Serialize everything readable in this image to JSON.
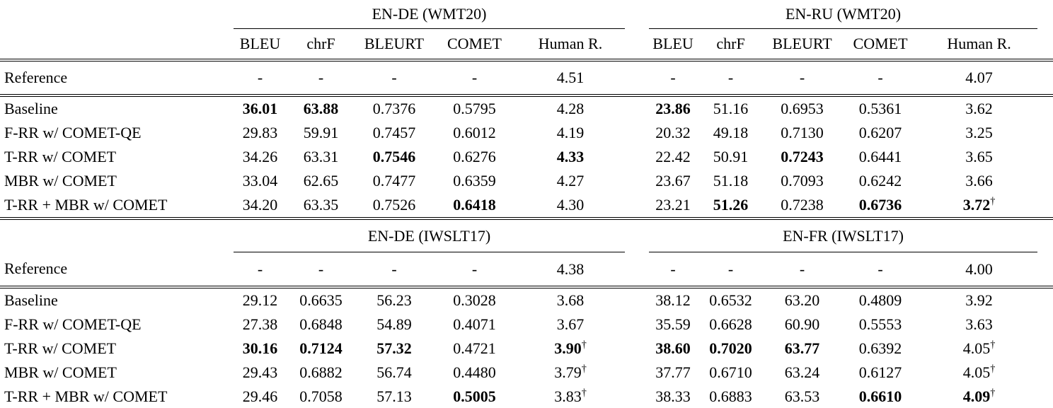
{
  "page": {
    "background": "#ffffff",
    "text_color": "#000000"
  },
  "table": {
    "metric_headers": [
      "BLEU",
      "chrF",
      "BLEURT",
      "COMET",
      "Human R."
    ],
    "sections": [
      {
        "groups": [
          {
            "label": "EN-DE (WMT20)"
          },
          {
            "label": "EN-RU (WMT20)"
          }
        ],
        "show_metric_headers": true,
        "reference": {
          "label": "Reference",
          "cells": [
            "-",
            "-",
            "-",
            "-",
            "4.51",
            "-",
            "-",
            "-",
            "-",
            "4.07"
          ]
        },
        "rows": [
          {
            "label": "Baseline",
            "cells": [
              {
                "t": "36.01",
                "b": true
              },
              {
                "t": "63.88",
                "b": true
              },
              "0.7376",
              "0.5795",
              "4.28",
              {
                "t": "23.86",
                "b": true
              },
              "51.16",
              "0.6953",
              "0.5361",
              "3.62"
            ]
          },
          {
            "label": "F-RR w/ COMET-QE",
            "cells": [
              "29.83",
              "59.91",
              "0.7457",
              "0.6012",
              "4.19",
              "20.32",
              "49.18",
              "0.7130",
              "0.6207",
              "3.25"
            ]
          },
          {
            "label": "T-RR w/ COMET",
            "cells": [
              "34.26",
              "63.31",
              {
                "t": "0.7546",
                "b": true
              },
              "0.6276",
              {
                "t": "4.33",
                "b": true
              },
              "22.42",
              "50.91",
              {
                "t": "0.7243",
                "b": true
              },
              "0.6441",
              "3.65"
            ]
          },
          {
            "label": "MBR w/ COMET",
            "cells": [
              "33.04",
              "62.65",
              "0.7477",
              "0.6359",
              "4.27",
              "23.67",
              "51.18",
              "0.7093",
              "0.6242",
              "3.66"
            ]
          },
          {
            "label": "T-RR + MBR w/ COMET",
            "cells": [
              "34.20",
              "63.35",
              "0.7526",
              {
                "t": "0.6418",
                "b": true
              },
              "4.30",
              "23.21",
              {
                "t": "51.26",
                "b": true
              },
              "0.7238",
              {
                "t": "0.6736",
                "b": true
              },
              {
                "t": "3.72",
                "b": true,
                "sup": "†"
              }
            ]
          }
        ]
      },
      {
        "groups": [
          {
            "label": "EN-DE (IWSLT17)"
          },
          {
            "label": "EN-FR (IWSLT17)"
          }
        ],
        "show_metric_headers": false,
        "reference": {
          "label": "Reference",
          "cells": [
            "-",
            "-",
            "-",
            "-",
            "4.38",
            "-",
            "-",
            "-",
            "-",
            "4.00"
          ]
        },
        "rows": [
          {
            "label": "Baseline",
            "cells": [
              "29.12",
              "0.6635",
              "56.23",
              "0.3028",
              "3.68",
              "38.12",
              "0.6532",
              "63.20",
              "0.4809",
              "3.92"
            ]
          },
          {
            "label": "F-RR w/ COMET-QE",
            "cells": [
              "27.38",
              "0.6848",
              "54.89",
              "0.4071",
              "3.67",
              "35.59",
              "0.6628",
              "60.90",
              "0.5553",
              "3.63"
            ]
          },
          {
            "label": "T-RR w/ COMET",
            "cells": [
              {
                "t": "30.16",
                "b": true
              },
              {
                "t": "0.7124",
                "b": true
              },
              {
                "t": "57.32",
                "b": true
              },
              "0.4721",
              {
                "t": "3.90",
                "b": true,
                "sup": "†"
              },
              {
                "t": "38.60",
                "b": true
              },
              {
                "t": "0.7020",
                "b": true
              },
              {
                "t": "63.77",
                "b": true
              },
              "0.6392",
              {
                "t": "4.05",
                "sup": "†"
              }
            ]
          },
          {
            "label": "MBR w/ COMET",
            "cells": [
              "29.43",
              "0.6882",
              "56.74",
              "0.4480",
              {
                "t": "3.79",
                "sup": "†"
              },
              "37.77",
              "0.6710",
              "63.24",
              "0.6127",
              {
                "t": "4.05",
                "sup": "†"
              }
            ]
          },
          {
            "label": "T-RR + MBR w/ COMET",
            "cells": [
              "29.46",
              "0.7058",
              "57.13",
              {
                "t": "0.5005",
                "b": true
              },
              {
                "t": "3.83",
                "sup": "†"
              },
              "38.33",
              "0.6883",
              "63.53",
              {
                "t": "0.6610",
                "b": true
              },
              {
                "t": "4.09",
                "b": true,
                "sup": "†"
              }
            ]
          }
        ]
      }
    ]
  }
}
